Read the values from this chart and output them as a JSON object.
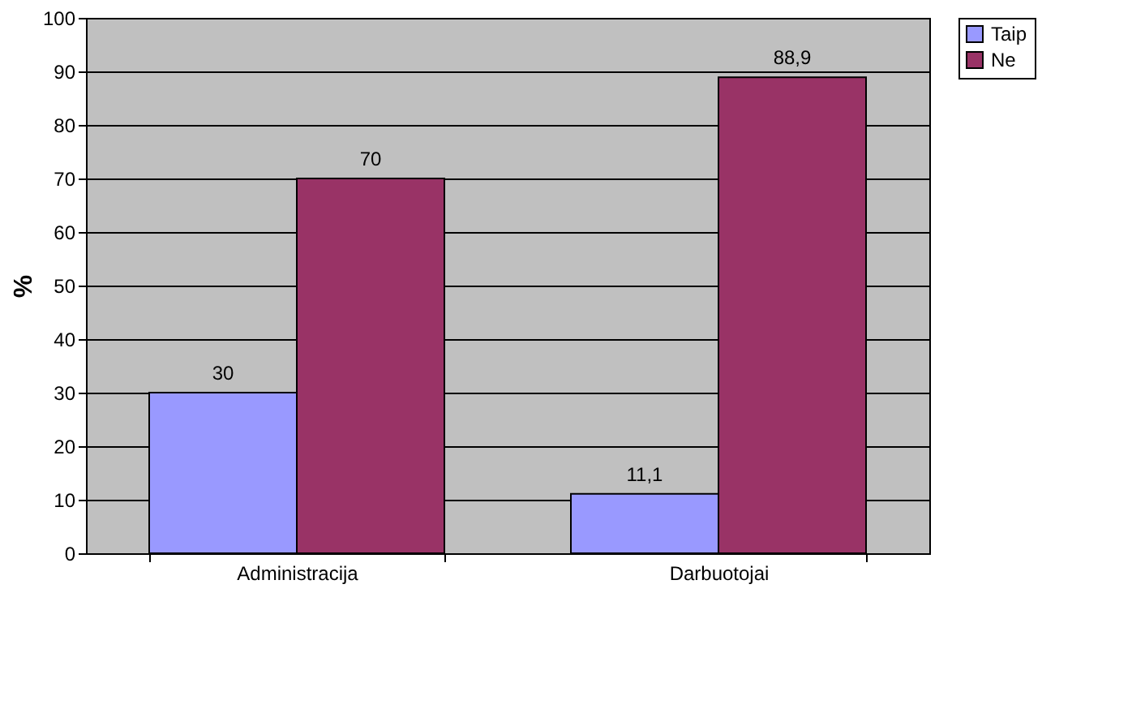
{
  "chart_data": {
    "type": "bar",
    "categories": [
      "Administracija",
      "Darbuotojai"
    ],
    "ylabel": "%",
    "ylim": [
      0,
      100
    ],
    "yticks": [
      0,
      10,
      20,
      30,
      40,
      50,
      60,
      70,
      80,
      90,
      100
    ],
    "grid": "y",
    "legend": "right",
    "series": [
      {
        "name": "Taip",
        "color": "#9999ff",
        "values": [
          30,
          11.1
        ],
        "value_labels": [
          "30",
          "11,1"
        ]
      },
      {
        "name": "Ne",
        "color": "#993366",
        "values": [
          70,
          88.9
        ],
        "value_labels": [
          "70",
          "88,9"
        ]
      }
    ]
  }
}
